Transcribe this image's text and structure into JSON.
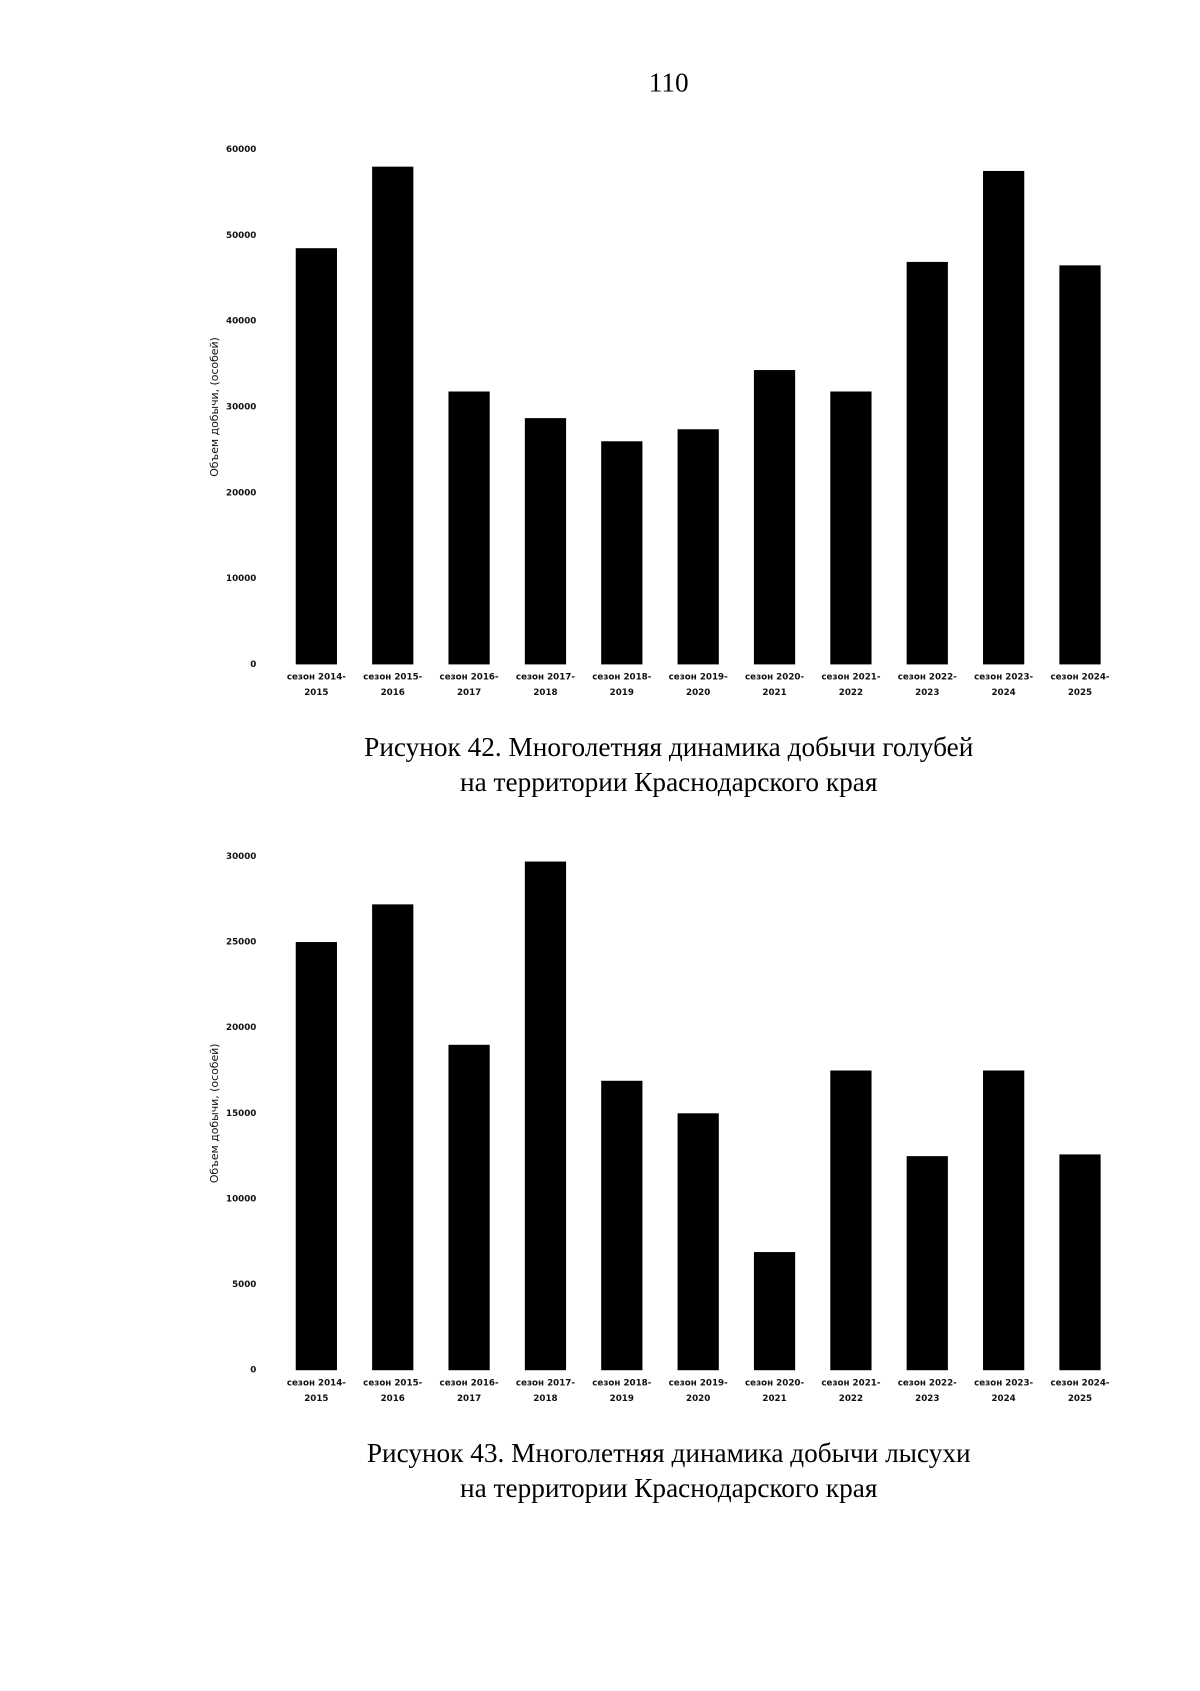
{
  "page_number": "110",
  "chart_data": [
    {
      "type": "bar",
      "caption": [
        "Рисунок 42. Многолетняя динамика добычи голубей",
        "на территории Краснодарского края"
      ],
      "y_label": "Объем добычи, (особей)",
      "categories": [
        [
          "сезон 2014-",
          "2015"
        ],
        [
          "сезон 2015-",
          "2016"
        ],
        [
          "сезон 2016-",
          "2017"
        ],
        [
          "сезон 2017-",
          "2018"
        ],
        [
          "сезон 2018-",
          "2019"
        ],
        [
          "сезон 2019-",
          "2020"
        ],
        [
          "сезон 2020-",
          "2021"
        ],
        [
          "сезон 2021-",
          "2022"
        ],
        [
          "сезон 2022-",
          "2023"
        ],
        [
          "сезон 2023-",
          "2024"
        ],
        [
          "сезон 2024-",
          "2025"
        ]
      ],
      "values": [
        48500,
        58000,
        31800,
        28700,
        26000,
        27400,
        34300,
        31800,
        46900,
        57500,
        46500
      ],
      "color": "#000000",
      "ylim": [
        0,
        60000
      ],
      "yticks": [
        0,
        10000,
        20000,
        30000,
        40000,
        50000,
        60000
      ],
      "grid": false
    },
    {
      "type": "bar",
      "caption": [
        "Рисунок 43. Многолетняя динамика добычи лысухи",
        "на территории Краснодарского края"
      ],
      "y_label": "Объем добычи, (особей)",
      "categories": [
        [
          "сезон 2014-",
          "2015"
        ],
        [
          "сезон 2015-",
          "2016"
        ],
        [
          "сезон 2016-",
          "2017"
        ],
        [
          "сезон 2017-",
          "2018"
        ],
        [
          "сезон 2018-",
          "2019"
        ],
        [
          "сезон 2019-",
          "2020"
        ],
        [
          "сезон 2020-",
          "2021"
        ],
        [
          "сезон 2021-",
          "2022"
        ],
        [
          "сезон 2022-",
          "2023"
        ],
        [
          "сезон 2023-",
          "2024"
        ],
        [
          "сезон 2024-",
          "2025"
        ]
      ],
      "values": [
        25000,
        27200,
        19000,
        29700,
        16900,
        15000,
        6900,
        17500,
        12500,
        17500,
        12600
      ],
      "color": "#000000",
      "ylim": [
        0,
        30000
      ],
      "yticks": [
        0,
        5000,
        10000,
        15000,
        20000,
        25000,
        30000
      ],
      "grid": false
    }
  ]
}
